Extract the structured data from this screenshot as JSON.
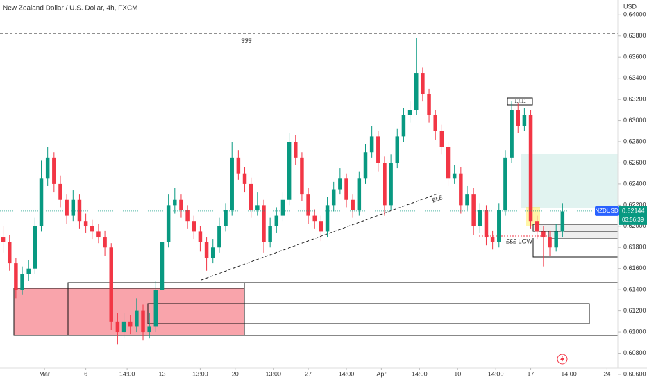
{
  "chart_data": {
    "type": "candlestick",
    "title": "New Zealand Dollar / U.S. Dollar, 4h, FXCM",
    "currency": "USD",
    "symbol": "NZDUSD",
    "last_price": 0.62144,
    "countdown": "03:56:39",
    "annotations": [
      "£££",
      "£££",
      "£££",
      "£££ LOW"
    ],
    "xlim": [
      -0.5,
      96.7
    ],
    "xticks": [
      {
        "value": 6.5,
        "label": "Mar"
      },
      {
        "value": 13,
        "label": "6"
      },
      {
        "value": 19.5,
        "label": "14:00"
      },
      {
        "value": 25,
        "label": "13"
      },
      {
        "value": 31,
        "label": "13:00"
      },
      {
        "value": 36.5,
        "label": "20"
      },
      {
        "value": 42.5,
        "label": "13:00"
      },
      {
        "value": 48,
        "label": "27"
      },
      {
        "value": 54,
        "label": "14:00"
      },
      {
        "value": 59.5,
        "label": "Apr"
      },
      {
        "value": 65.5,
        "label": "14:00"
      },
      {
        "value": 71.5,
        "label": "10"
      },
      {
        "value": 77.5,
        "label": "14:00"
      },
      {
        "value": 83,
        "label": "17"
      },
      {
        "value": 89,
        "label": "14:00"
      },
      {
        "value": 95,
        "label": "24"
      }
    ],
    "ylim": [
      0.60626,
      0.6414
    ],
    "yticks": [
      {
        "value": 0.606,
        "label": "0.60600"
      },
      {
        "value": 0.608,
        "label": "0.60800"
      },
      {
        "value": 0.61,
        "label": "0.61000"
      },
      {
        "value": 0.612,
        "label": "0.61200"
      },
      {
        "value": 0.614,
        "label": "0.61400"
      },
      {
        "value": 0.616,
        "label": "0.61600"
      },
      {
        "value": 0.618,
        "label": "0.61800"
      },
      {
        "value": 0.62,
        "label": "0.62000"
      },
      {
        "value": 0.622,
        "label": "0.62200"
      },
      {
        "value": 0.624,
        "label": "0.62400"
      },
      {
        "value": 0.626,
        "label": "0.62600"
      },
      {
        "value": 0.628,
        "label": "0.62800"
      },
      {
        "value": 0.63,
        "label": "0.63000"
      },
      {
        "value": 0.632,
        "label": "0.63200"
      },
      {
        "value": 0.634,
        "label": "0.63400"
      },
      {
        "value": 0.636,
        "label": "0.63600"
      },
      {
        "value": 0.638,
        "label": "0.63800"
      },
      {
        "value": 0.64,
        "label": "0.64000"
      }
    ],
    "grid": false,
    "up_color": "#089981",
    "down_color": "#f23645",
    "candles": [
      [
        0.619,
        0.62,
        0.6175,
        0.6185
      ],
      [
        0.6185,
        0.6192,
        0.6158,
        0.6165
      ],
      [
        0.6165,
        0.617,
        0.6132,
        0.614
      ],
      [
        0.614,
        0.6162,
        0.6135,
        0.6155
      ],
      [
        0.6155,
        0.6168,
        0.6148,
        0.616
      ],
      [
        0.616,
        0.6208,
        0.6155,
        0.62
      ],
      [
        0.62,
        0.6262,
        0.6195,
        0.6245
      ],
      [
        0.6245,
        0.6275,
        0.6238,
        0.6265
      ],
      [
        0.6265,
        0.627,
        0.6232,
        0.624
      ],
      [
        0.624,
        0.6248,
        0.6218,
        0.6225
      ],
      [
        0.6225,
        0.623,
        0.6202,
        0.621
      ],
      [
        0.621,
        0.6234,
        0.6205,
        0.6225
      ],
      [
        0.6225,
        0.623,
        0.6198,
        0.6205
      ],
      [
        0.6205,
        0.6212,
        0.6194,
        0.62
      ],
      [
        0.62,
        0.6206,
        0.6188,
        0.6195
      ],
      [
        0.6195,
        0.6202,
        0.6184,
        0.619
      ],
      [
        0.619,
        0.6196,
        0.6172,
        0.618
      ],
      [
        0.618,
        0.6184,
        0.6102,
        0.611
      ],
      [
        0.611,
        0.6118,
        0.6088,
        0.61
      ],
      [
        0.61,
        0.6118,
        0.6094,
        0.611
      ],
      [
        0.611,
        0.6116,
        0.6098,
        0.6105
      ],
      [
        0.6105,
        0.6132,
        0.61,
        0.612
      ],
      [
        0.612,
        0.6126,
        0.6092,
        0.61
      ],
      [
        0.61,
        0.6118,
        0.6094,
        0.6105
      ],
      [
        0.6105,
        0.6148,
        0.61,
        0.614
      ],
      [
        0.614,
        0.6192,
        0.6136,
        0.6185
      ],
      [
        0.6185,
        0.623,
        0.618,
        0.622
      ],
      [
        0.622,
        0.6236,
        0.6212,
        0.6225
      ],
      [
        0.6225,
        0.623,
        0.6208,
        0.6215
      ],
      [
        0.6215,
        0.622,
        0.6198,
        0.6205
      ],
      [
        0.6205,
        0.621,
        0.6188,
        0.6195
      ],
      [
        0.6195,
        0.62,
        0.6176,
        0.6185
      ],
      [
        0.6185,
        0.619,
        0.6158,
        0.617
      ],
      [
        0.617,
        0.6188,
        0.6165,
        0.618
      ],
      [
        0.618,
        0.6208,
        0.6175,
        0.62
      ],
      [
        0.62,
        0.6222,
        0.6195,
        0.6215
      ],
      [
        0.6215,
        0.628,
        0.621,
        0.6265
      ],
      [
        0.6265,
        0.6272,
        0.6244,
        0.625
      ],
      [
        0.625,
        0.6256,
        0.6232,
        0.624
      ],
      [
        0.624,
        0.6246,
        0.6208,
        0.6215
      ],
      [
        0.6215,
        0.6232,
        0.621,
        0.622
      ],
      [
        0.622,
        0.6225,
        0.6175,
        0.6185
      ],
      [
        0.6185,
        0.6208,
        0.618,
        0.62
      ],
      [
        0.62,
        0.6218,
        0.6194,
        0.621
      ],
      [
        0.621,
        0.6232,
        0.6205,
        0.6225
      ],
      [
        0.6225,
        0.6288,
        0.622,
        0.628
      ],
      [
        0.628,
        0.6286,
        0.6258,
        0.6265
      ],
      [
        0.6265,
        0.627,
        0.6224,
        0.623
      ],
      [
        0.623,
        0.6236,
        0.6202,
        0.621
      ],
      [
        0.621,
        0.6216,
        0.6198,
        0.6205
      ],
      [
        0.6205,
        0.621,
        0.6186,
        0.6195
      ],
      [
        0.6195,
        0.6228,
        0.619,
        0.622
      ],
      [
        0.622,
        0.6242,
        0.6214,
        0.6235
      ],
      [
        0.6235,
        0.6255,
        0.623,
        0.6245
      ],
      [
        0.6245,
        0.625,
        0.6218,
        0.6225
      ],
      [
        0.6225,
        0.623,
        0.6208,
        0.6215
      ],
      [
        0.6215,
        0.6252,
        0.621,
        0.6245
      ],
      [
        0.6245,
        0.6278,
        0.624,
        0.627
      ],
      [
        0.627,
        0.6295,
        0.6265,
        0.6285
      ],
      [
        0.6285,
        0.629,
        0.6252,
        0.626
      ],
      [
        0.626,
        0.6266,
        0.621,
        0.622
      ],
      [
        0.622,
        0.6268,
        0.6215,
        0.626
      ],
      [
        0.626,
        0.6292,
        0.6255,
        0.6285
      ],
      [
        0.6285,
        0.6312,
        0.628,
        0.6305
      ],
      [
        0.6305,
        0.6318,
        0.6298,
        0.631
      ],
      [
        0.631,
        0.6378,
        0.6305,
        0.6345
      ],
      [
        0.6345,
        0.635,
        0.6318,
        0.6325
      ],
      [
        0.6325,
        0.633,
        0.6298,
        0.6305
      ],
      [
        0.6305,
        0.631,
        0.6282,
        0.629
      ],
      [
        0.629,
        0.6296,
        0.6268,
        0.6275
      ],
      [
        0.6275,
        0.628,
        0.6238,
        0.6245
      ],
      [
        0.6245,
        0.6258,
        0.624,
        0.625
      ],
      [
        0.625,
        0.6256,
        0.6212,
        0.622
      ],
      [
        0.622,
        0.6238,
        0.6214,
        0.623
      ],
      [
        0.623,
        0.6236,
        0.6192,
        0.62
      ],
      [
        0.62,
        0.6222,
        0.6194,
        0.6215
      ],
      [
        0.6215,
        0.622,
        0.6182,
        0.619
      ],
      [
        0.619,
        0.6196,
        0.6178,
        0.6185
      ],
      [
        0.6185,
        0.6222,
        0.618,
        0.6215
      ],
      [
        0.6215,
        0.6272,
        0.621,
        0.6265
      ],
      [
        0.6265,
        0.6318,
        0.626,
        0.631
      ],
      [
        0.631,
        0.6316,
        0.6288,
        0.6295
      ],
      [
        0.6295,
        0.6312,
        0.629,
        0.6305
      ],
      [
        0.6305,
        0.631,
        0.6198,
        0.6205
      ],
      [
        0.6205,
        0.621,
        0.6188,
        0.6195
      ],
      [
        0.6195,
        0.62,
        0.6162,
        0.619
      ],
      [
        0.619,
        0.6196,
        0.6172,
        0.618
      ],
      [
        0.618,
        0.6202,
        0.6176,
        0.6195
      ],
      [
        0.6195,
        0.6222,
        0.619,
        0.6214
      ]
    ]
  }
}
